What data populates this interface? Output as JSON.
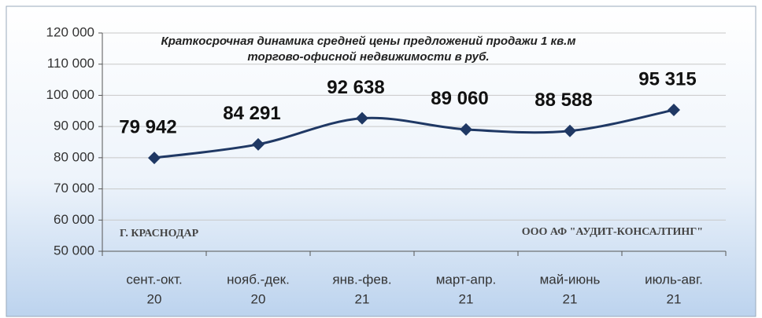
{
  "chart_data": {
    "type": "line",
    "title": [
      "Краткосрочная динамика средней цены предложений продажи 1 кв.м",
      "торгово-офисной недвижимости в руб."
    ],
    "annotations": [
      "Г. КРАСНОДАР",
      "ООО АФ \"АУДИТ-КОНСАЛТИНГ\""
    ],
    "categories": [
      [
        "сент.-окт.",
        "20"
      ],
      [
        "нояб.-дек.",
        "20"
      ],
      [
        "янв.-фев.",
        "21"
      ],
      [
        "март-апр.",
        "21"
      ],
      [
        "май-июнь",
        "21"
      ],
      [
        "июль-авг.",
        "21"
      ]
    ],
    "values": [
      79942,
      84291,
      92638,
      89060,
      88588,
      95315
    ],
    "value_labels": [
      "79 942",
      "84 291",
      "92 638",
      "89 060",
      "88 588",
      "95 315"
    ],
    "color": "#1f3864",
    "ylim": [
      50000,
      120000
    ],
    "yticks": [
      {
        "value": 50000,
        "label": "50 000"
      },
      {
        "value": 60000,
        "label": "60 000"
      },
      {
        "value": 70000,
        "label": "70 000"
      },
      {
        "value": 80000,
        "label": "80 000"
      },
      {
        "value": 90000,
        "label": "90 000"
      },
      {
        "value": 100000,
        "label": "100 000"
      },
      {
        "value": 110000,
        "label": "110 000"
      },
      {
        "value": 120000,
        "label": "120 000"
      }
    ],
    "grid": true
  }
}
